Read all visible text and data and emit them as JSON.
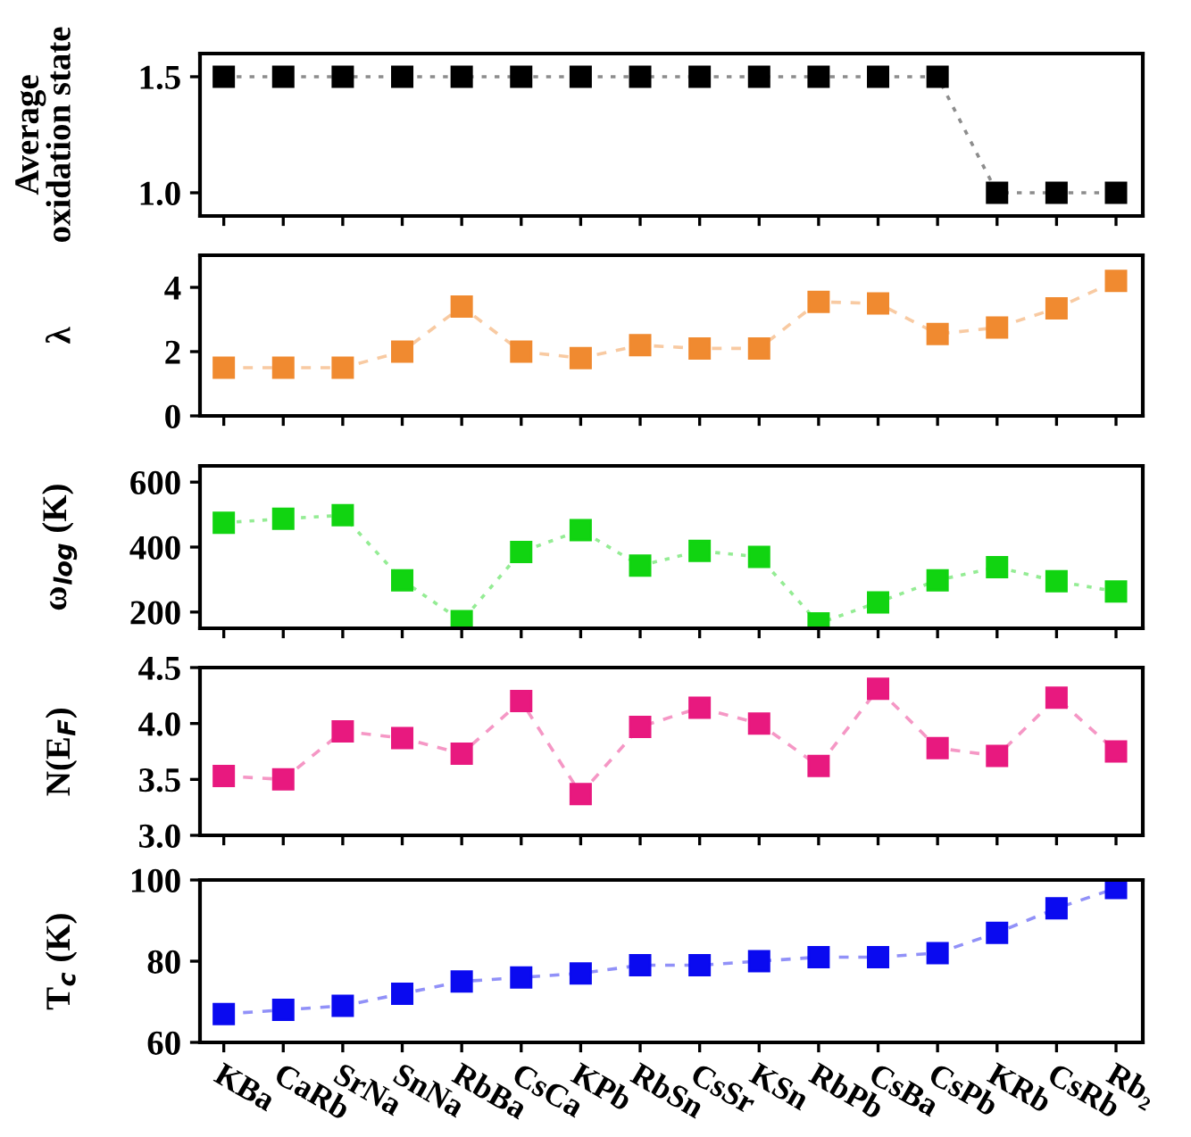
{
  "chart_data": [
    {
      "type": "line",
      "ylabel": "Average\noxidation state",
      "categories": [
        null,
        null,
        null,
        null,
        null,
        null,
        null,
        null,
        null,
        null,
        null,
        null,
        null,
        null,
        null,
        null
      ],
      "ylim": [
        0.9,
        1.6
      ],
      "yticks": [
        {
          "value": 1.0,
          "label": "1.0"
        },
        {
          "value": 1.5,
          "label": "1.5"
        }
      ],
      "tick_labels": "y",
      "marker": "square",
      "line_style": "dotted",
      "grid": false,
      "series": [
        {
          "color": "#000000",
          "values": [
            1.5,
            1.5,
            1.5,
            1.5,
            1.5,
            1.5,
            1.5,
            1.5,
            1.5,
            1.5,
            1.5,
            1.5,
            1.5,
            1.0,
            1.0,
            1.0
          ]
        }
      ]
    },
    {
      "type": "line",
      "ylabel": "λ",
      "categories": [
        null,
        null,
        null,
        null,
        null,
        null,
        null,
        null,
        null,
        null,
        null,
        null,
        null,
        null,
        null,
        null
      ],
      "ylim": [
        0,
        5
      ],
      "yticks": [
        0,
        2,
        4
      ],
      "tick_labels": "y",
      "marker": "square",
      "line_style": "dashed",
      "grid": false,
      "series": [
        {
          "color": "#f08a30",
          "values": [
            1.5,
            1.5,
            1.5,
            2.0,
            3.4,
            2.0,
            1.8,
            2.2,
            2.1,
            2.1,
            3.55,
            3.5,
            2.55,
            2.75,
            3.35,
            4.2
          ]
        }
      ]
    },
    {
      "type": "line",
      "ylabel": "ω$_{log}$ (K)",
      "categories": [
        null,
        null,
        null,
        null,
        null,
        null,
        null,
        null,
        null,
        null,
        null,
        null,
        null,
        null,
        null,
        null
      ],
      "ylim": [
        150,
        650
      ],
      "yticks": [
        200,
        400,
        600
      ],
      "tick_labels": "y",
      "marker": "square",
      "line_style": "dotted",
      "grid": false,
      "series": [
        {
          "color": "#11d411",
          "values": [
            475,
            487,
            498,
            298,
            172,
            385,
            452,
            343,
            388,
            370,
            165,
            230,
            298,
            338,
            295,
            263
          ]
        }
      ]
    },
    {
      "type": "line",
      "ylabel": "N(E$_{F}$)",
      "categories": [
        null,
        null,
        null,
        null,
        null,
        null,
        null,
        null,
        null,
        null,
        null,
        null,
        null,
        null,
        null,
        null
      ],
      "ylim": [
        3.0,
        4.5
      ],
      "yticks": [
        {
          "value": 3.0,
          "label": "3.0"
        },
        {
          "value": 3.5,
          "label": "3.5"
        },
        {
          "value": 4.0,
          "label": "4.0"
        },
        {
          "value": 4.5,
          "label": "4.5"
        }
      ],
      "tick_labels": "y",
      "marker": "square",
      "line_style": "dashed",
      "grid": false,
      "series": [
        {
          "color": "#e8197f",
          "values": [
            3.53,
            3.5,
            3.93,
            3.87,
            3.73,
            4.2,
            3.37,
            3.97,
            4.14,
            4.0,
            3.62,
            4.31,
            3.78,
            3.71,
            4.23,
            3.75
          ]
        }
      ]
    },
    {
      "type": "line",
      "ylabel": "T$_{c}$ (K)",
      "categories": [
        "KBa",
        "CaRb",
        "SrNa",
        "SnNa",
        "RbBa",
        "CsCa",
        "KPb",
        "RbSn",
        "CsSr",
        "KSn",
        "RbPb",
        "CsBa",
        "CsPb",
        "KRb",
        "CsRb",
        "Rb₂"
      ],
      "ylim": [
        60,
        100
      ],
      "yticks": [
        60,
        80,
        100
      ],
      "marker": "square",
      "line_style": "dashed",
      "grid": false,
      "series": [
        {
          "color": "#0a0af0",
          "values": [
            67,
            68,
            69,
            72,
            75,
            76,
            77,
            79,
            79,
            80,
            81,
            81,
            82,
            87,
            93,
            98
          ]
        }
      ]
    }
  ]
}
